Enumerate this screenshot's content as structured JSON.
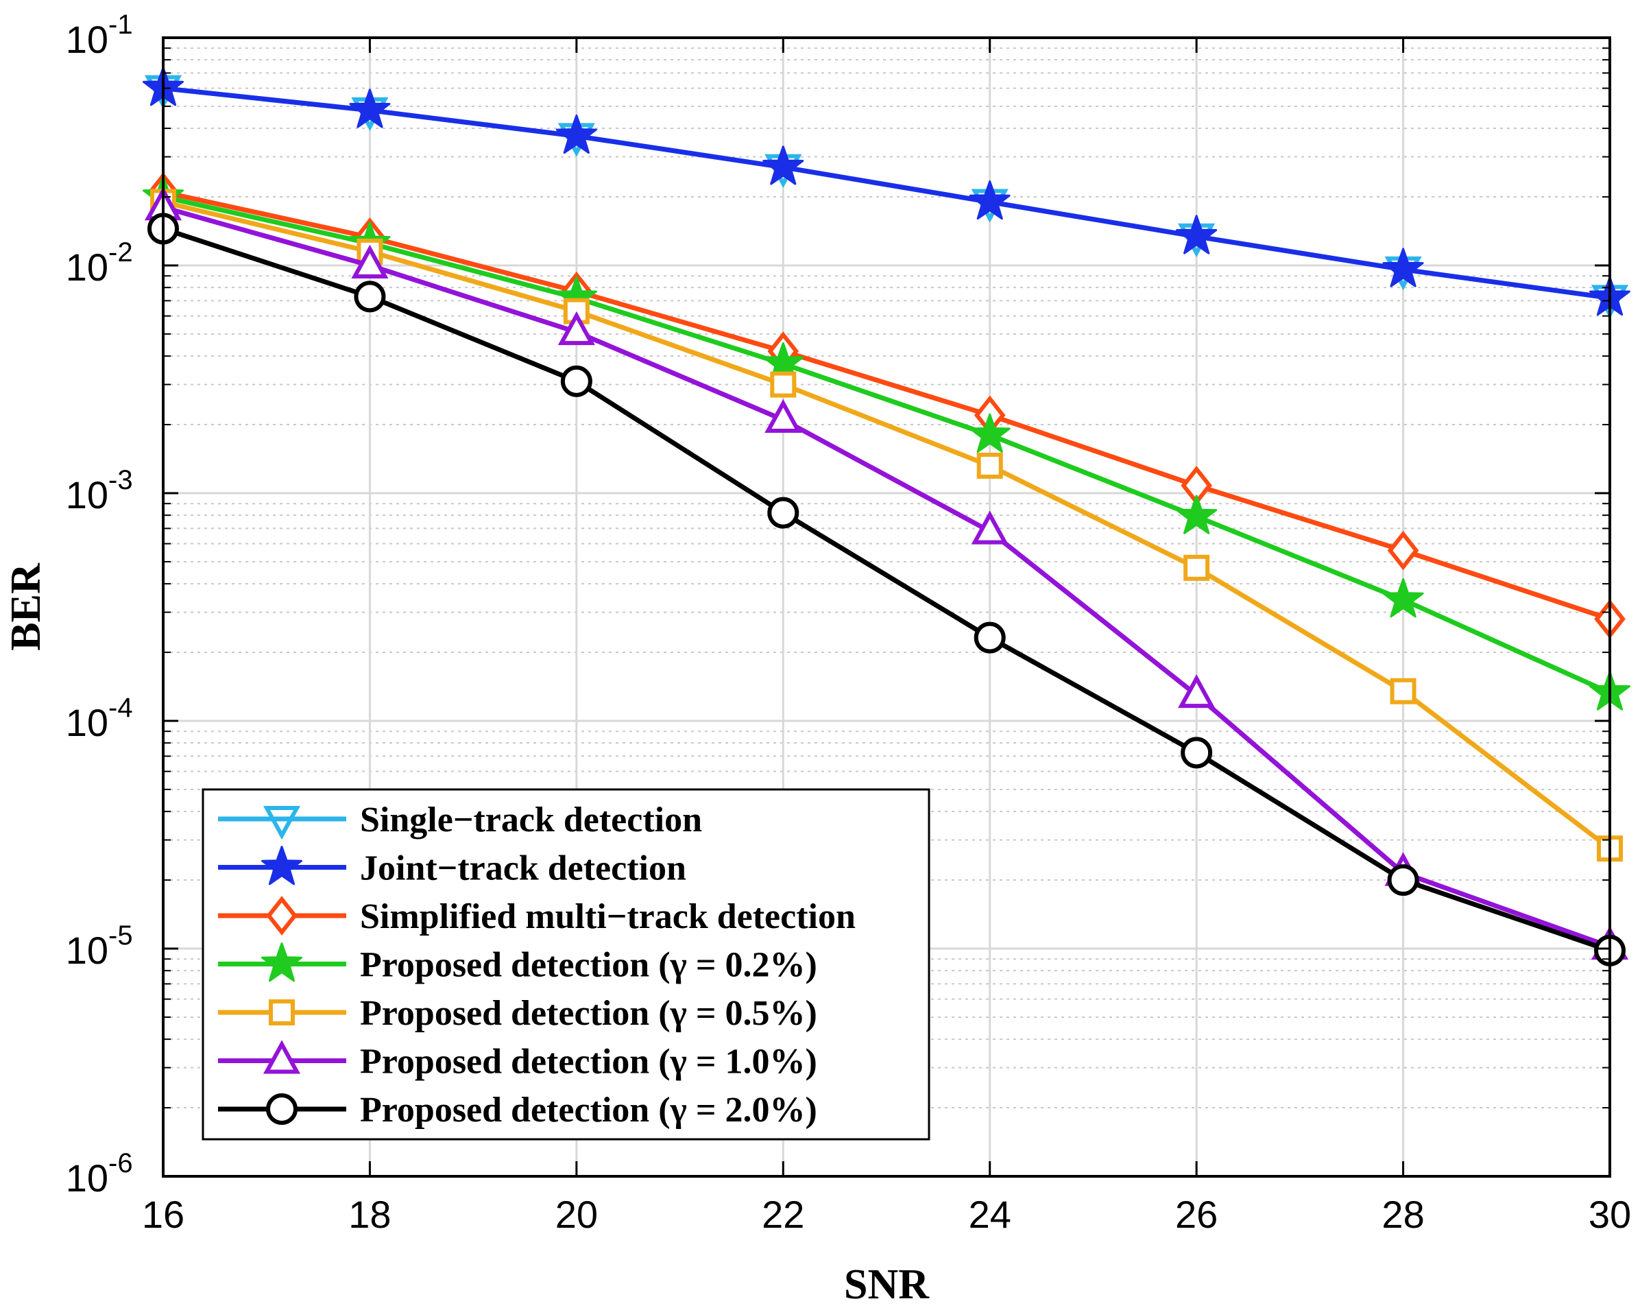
{
  "chart_data": {
    "type": "line",
    "title": "",
    "xlabel": "SNR",
    "ylabel": "BER",
    "yscale": "log",
    "xlim": [
      16,
      30
    ],
    "ylim": [
      1e-06,
      0.1
    ],
    "grid": true,
    "legend_position": "bottom-left",
    "x": [
      16,
      18,
      20,
      22,
      24,
      26,
      28,
      30
    ],
    "x_ticks": [
      "16",
      "18",
      "20",
      "22",
      "24",
      "26",
      "28",
      "30"
    ],
    "y_ticks": [
      {
        "value": 0.1,
        "base": "10",
        "exp": "-1"
      },
      {
        "value": 0.01,
        "base": "10",
        "exp": "-2"
      },
      {
        "value": 0.001,
        "base": "10",
        "exp": "-3"
      },
      {
        "value": 0.0001,
        "base": "10",
        "exp": "-4"
      },
      {
        "value": 1e-05,
        "base": "10",
        "exp": "-5"
      },
      {
        "value": 1e-06,
        "base": "10",
        "exp": "-6"
      }
    ],
    "series": [
      {
        "name": "Single−track detection",
        "color": "#2cb5ea",
        "marker": "triangle-down",
        "values": [
          0.06,
          0.048,
          0.037,
          0.027,
          0.019,
          0.0134,
          0.0096,
          0.0072
        ]
      },
      {
        "name": "Joint−track detection",
        "color": "#1a2ee8",
        "marker": "star",
        "values": [
          0.06,
          0.048,
          0.037,
          0.027,
          0.019,
          0.0134,
          0.0096,
          0.0072
        ]
      },
      {
        "name": "Simplified multi−track detection",
        "color": "#ff4a12",
        "marker": "diamond",
        "values": [
          0.021,
          0.0133,
          0.0077,
          0.0042,
          0.0022,
          0.00108,
          0.00056,
          0.00028
        ]
      },
      {
        "name": "Proposed detection (γ = 0.2%)",
        "color": "#1ecb1e",
        "marker": "star",
        "values": [
          0.02,
          0.0125,
          0.0072,
          0.0037,
          0.0018,
          0.00079,
          0.00034,
          0.000133
        ]
      },
      {
        "name": "Proposed detection (γ = 0.5%)",
        "color": "#f0a81a",
        "marker": "square",
        "values": [
          0.019,
          0.0115,
          0.0063,
          0.003,
          0.00132,
          0.00047,
          0.000135,
          2.75e-05
        ]
      },
      {
        "name": "Proposed detection (γ = 1.0%)",
        "color": "#9313d8",
        "marker": "triangle-up",
        "values": [
          0.018,
          0.01,
          0.0051,
          0.0021,
          0.00068,
          0.00013,
          2.15e-05,
          1.02e-05
        ]
      },
      {
        "name": "Proposed detection (γ = 2.0%)",
        "color": "#000000",
        "marker": "circle",
        "values": [
          0.0145,
          0.0073,
          0.0031,
          0.00082,
          0.000232,
          7.25e-05,
          2e-05,
          9.8e-06
        ]
      }
    ]
  }
}
